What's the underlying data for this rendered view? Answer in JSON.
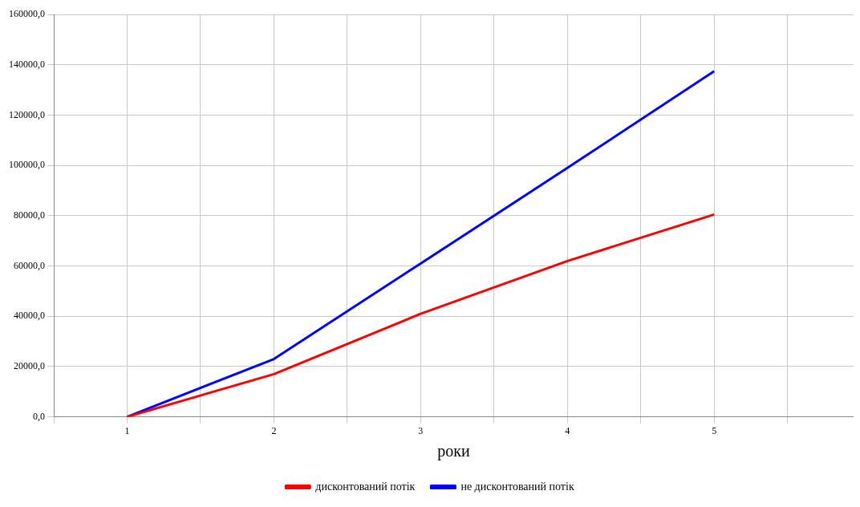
{
  "chart_data": {
    "type": "line",
    "xlabel": "роки",
    "x": [
      1,
      2,
      3,
      4,
      5
    ],
    "series": [
      {
        "name": "дисконтований потік",
        "color": "#ff0000",
        "values": [
          0,
          17000,
          41000,
          62000,
          80500
        ]
      },
      {
        "name": "не дисконтований потік",
        "color": "#0000ff",
        "values": [
          0,
          23000,
          61000,
          99000,
          137500
        ]
      }
    ],
    "xlim": [
      0.5,
      5.95
    ],
    "xticks": [
      {
        "value": 0.5,
        "label": null
      },
      1,
      {
        "value": 1.5,
        "label": null
      },
      2,
      {
        "value": 2.5,
        "label": null
      },
      3,
      {
        "value": 3.5,
        "label": null
      },
      4,
      {
        "value": 4.5,
        "label": null
      },
      5,
      {
        "value": 5.5,
        "label": null
      }
    ],
    "ylim": [
      0,
      160000
    ],
    "yticks": [
      {
        "value": 0,
        "label": "0,0"
      },
      {
        "value": 20000,
        "label": "20000,0"
      },
      {
        "value": 40000,
        "label": "40000,0"
      },
      {
        "value": 60000,
        "label": "60000,0"
      },
      {
        "value": 80000,
        "label": "80000,0"
      },
      {
        "value": 100000,
        "label": "100000,0"
      },
      {
        "value": 120000,
        "label": "120000,0"
      },
      {
        "value": 140000,
        "label": "140000,0"
      },
      {
        "value": 160000,
        "label": "160000,0"
      }
    ],
    "grid": true,
    "legend": "bottom",
    "marker": "none",
    "line_style": "solid"
  }
}
